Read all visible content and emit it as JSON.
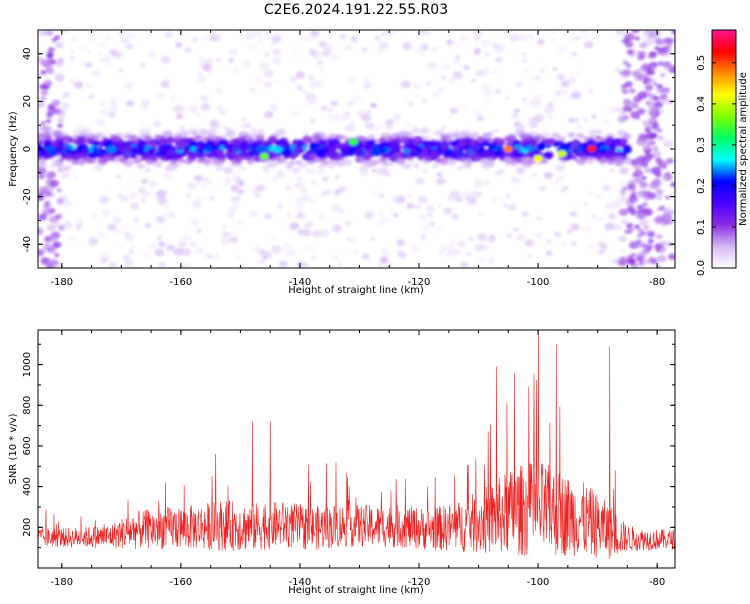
{
  "title": "C2E6.2024.191.22.55.R03",
  "chart_data": [
    {
      "type": "heatmap",
      "xlabel": "Height of straight line (km)",
      "ylabel": "Frequency (Hz)",
      "xlim": [
        -184,
        -77
      ],
      "ylim": [
        -50,
        50
      ],
      "x_ticks": [
        "-180",
        "-160",
        "-140",
        "-120",
        "-100",
        "-80"
      ],
      "y_ticks": [
        "-40",
        "-20",
        "0",
        "20",
        "40"
      ],
      "colorbar": {
        "label": "Normalized spectral amplitude",
        "range": [
          0,
          0.58
        ],
        "ticks": [
          "0.0",
          "0.1",
          "0.2",
          "0.3",
          "0.4",
          "0.5"
        ],
        "colormap": [
          "#ffffff",
          "#d4b8f5",
          "#8a2be2",
          "#4b00ff",
          "#0000ff",
          "#00ffff",
          "#00ff66",
          "#7fff00",
          "#ffff00",
          "#ff8c00",
          "#ff0000",
          "#ff1493"
        ]
      },
      "signal_band": {
        "center_hz": 0,
        "half_width_hz": 6,
        "x_range": [
          -184,
          -85
        ]
      },
      "hotspots": [
        {
          "x": -91,
          "y": 0,
          "value": 0.52
        },
        {
          "x": -105,
          "y": 0,
          "value": 0.48
        },
        {
          "x": -100,
          "y": -4,
          "value": 0.42
        },
        {
          "x": -96,
          "y": -2,
          "value": 0.4
        },
        {
          "x": -146,
          "y": -3,
          "value": 0.36
        },
        {
          "x": -131,
          "y": 3,
          "value": 0.34
        }
      ]
    },
    {
      "type": "line",
      "xlabel": "Height of straight line (km)",
      "ylabel": "SNR (10 * v/v)",
      "xlim": [
        -184,
        -77
      ],
      "ylim": [
        0,
        1170
      ],
      "x_ticks": [
        "-180",
        "-160",
        "-140",
        "-120",
        "-100",
        "-80"
      ],
      "y_ticks": [
        "200",
        "400",
        "600",
        "800",
        "1000"
      ],
      "color": "#ee2222",
      "profile_x": [
        -184,
        -178,
        -172,
        -168,
        -163,
        -158,
        -153,
        -148,
        -143,
        -138,
        -133,
        -128,
        -123,
        -118,
        -113,
        -108,
        -104,
        -100,
        -96,
        -92,
        -88,
        -85,
        -82,
        -77
      ],
      "profile_baseline": [
        150,
        150,
        155,
        185,
        195,
        200,
        210,
        200,
        215,
        195,
        210,
        205,
        205,
        190,
        205,
        240,
        280,
        290,
        265,
        235,
        180,
        145,
        140,
        140
      ],
      "profile_spread": [
        90,
        90,
        110,
        170,
        190,
        200,
        230,
        220,
        210,
        200,
        200,
        190,
        195,
        190,
        230,
        320,
        400,
        440,
        380,
        330,
        250,
        120,
        100,
        90
      ],
      "peaks": [
        {
          "x": -100,
          "y": 1170
        },
        {
          "x": -97,
          "y": 1100
        },
        {
          "x": -88,
          "y": 1090
        },
        {
          "x": -107,
          "y": 990
        },
        {
          "x": -104,
          "y": 960
        },
        {
          "x": -148,
          "y": 720
        },
        {
          "x": -145,
          "y": 720
        }
      ]
    }
  ]
}
